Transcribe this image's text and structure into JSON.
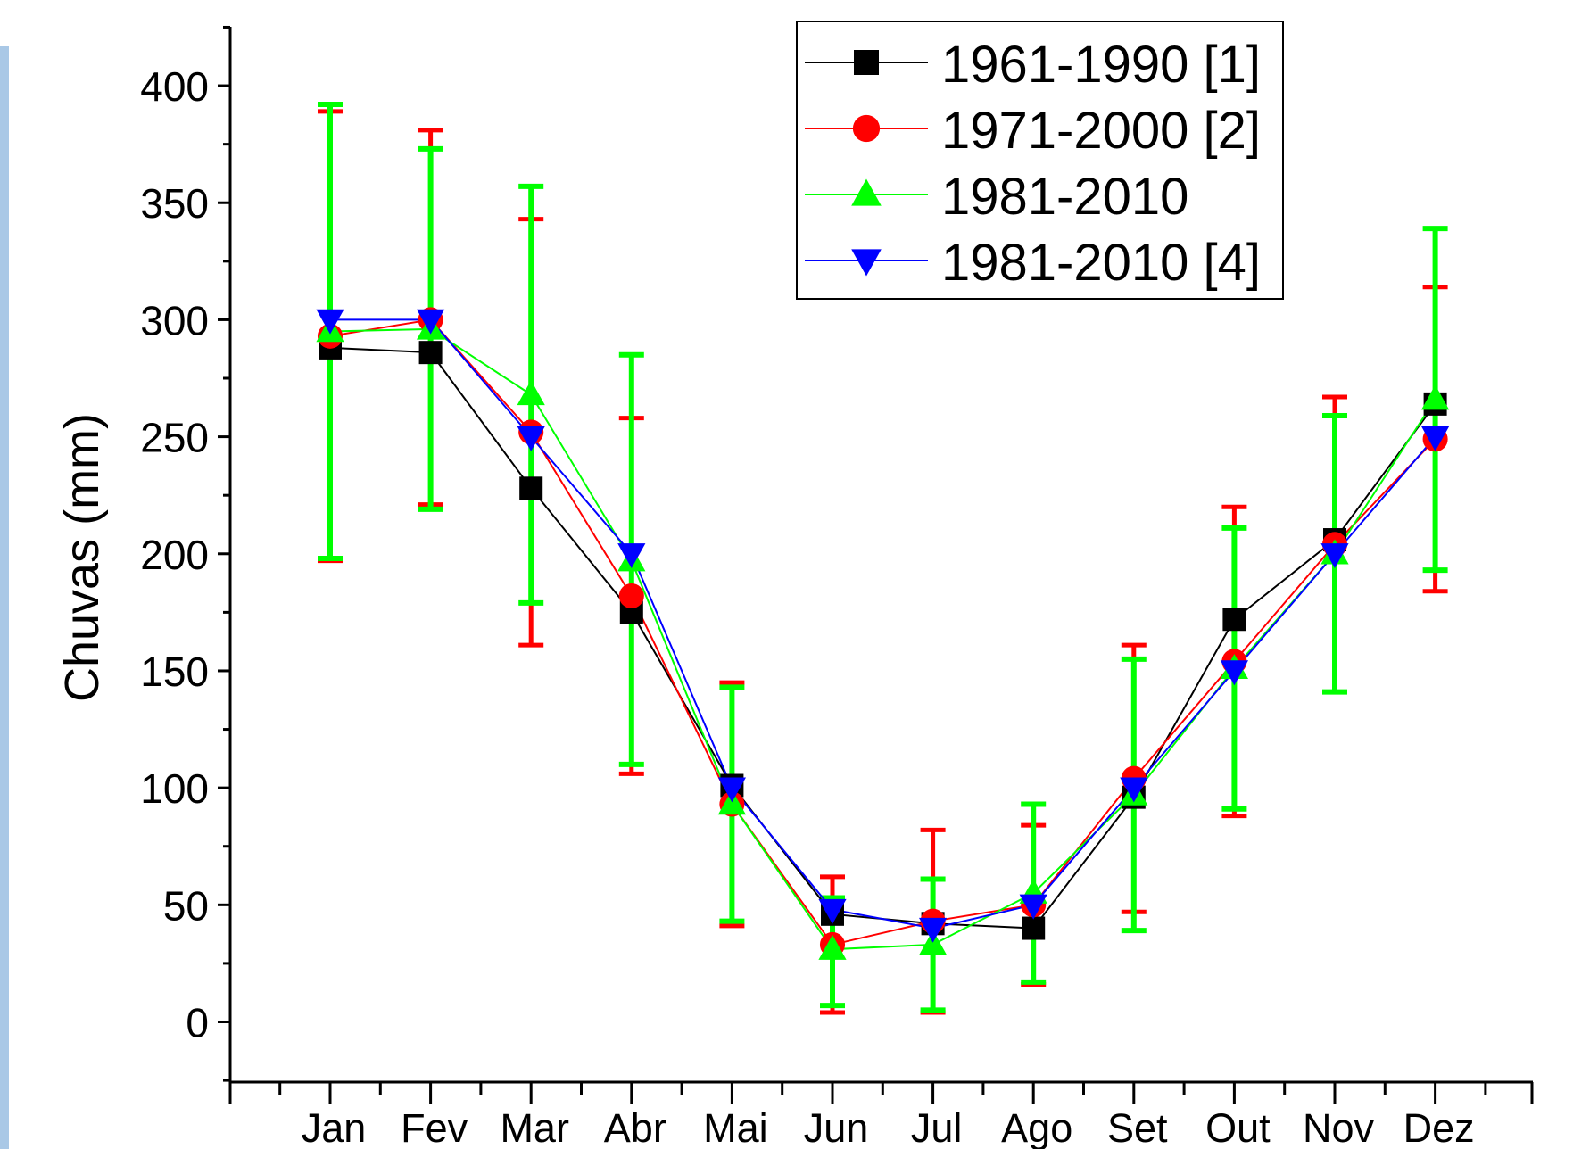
{
  "chart_data": {
    "type": "line",
    "xlabel": "",
    "ylabel": "Chuvas (mm)",
    "ylim": [
      -25,
      425
    ],
    "yticks": [
      0,
      50,
      100,
      150,
      200,
      250,
      300,
      350,
      400
    ],
    "categories": [
      "Jan",
      "Fev",
      "Mar",
      "Abr",
      "Mai",
      "Jun",
      "Jul",
      "Ago",
      "Set",
      "Out",
      "Nov",
      "Dez"
    ],
    "legend_position": "top-right",
    "grid": false,
    "series": [
      {
        "name": "1961-1990 [1]",
        "color": "#000000",
        "marker": "square",
        "values": [
          288,
          286,
          228,
          175,
          101,
          46,
          42,
          40,
          96,
          172,
          206,
          264
        ]
      },
      {
        "name": "1971-2000 [2]",
        "color": "#ff0000",
        "marker": "circle",
        "values": [
          293,
          300,
          252,
          182,
          93,
          33,
          43,
          50,
          104,
          154,
          204,
          249
        ],
        "error_low": [
          197,
          221,
          161,
          106,
          41,
          4,
          4,
          16,
          47,
          88,
          141,
          184
        ],
        "error_high": [
          389,
          381,
          343,
          258,
          145,
          62,
          82,
          84,
          161,
          220,
          267,
          314
        ]
      },
      {
        "name": "1981-2010",
        "color": "#00ff00",
        "marker": "triangle-up",
        "values": [
          295,
          296,
          268,
          197,
          93,
          31,
          33,
          55,
          97,
          151,
          200,
          266
        ],
        "error_low": [
          198,
          219,
          179,
          110,
          43,
          7,
          5,
          17,
          39,
          91,
          141,
          193
        ],
        "error_high": [
          392,
          373,
          357,
          285,
          143,
          53,
          61,
          93,
          155,
          211,
          259,
          339
        ]
      },
      {
        "name": "1981-2010 [4]",
        "color": "#0000ff",
        "marker": "triangle-down",
        "values": [
          300,
          300,
          250,
          200,
          100,
          48,
          40,
          50,
          100,
          150,
          200,
          250
        ]
      }
    ]
  }
}
